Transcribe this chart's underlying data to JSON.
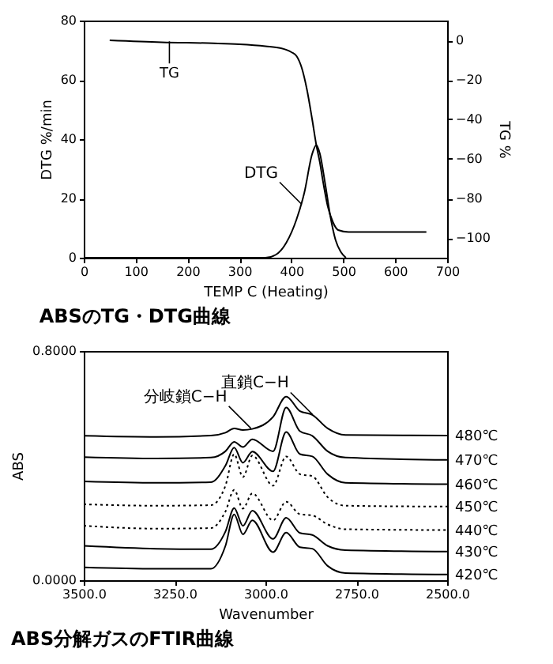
{
  "chart_data": [
    {
      "type": "line",
      "title": "ABSのTG・DTG曲線",
      "xlabel": "TEMP C  (Heating)",
      "ylabel": "DTG %/min",
      "y2label": "TG %",
      "xlim": [
        0,
        700
      ],
      "xticks": [
        0,
        100,
        200,
        300,
        400,
        500,
        600,
        700
      ],
      "ylim": [
        0,
        80
      ],
      "yticks": [
        0,
        20,
        40,
        60,
        80
      ],
      "y2lim": [
        -110,
        10
      ],
      "y2ticks": [
        0,
        -20,
        -40,
        -60,
        -80,
        -100
      ],
      "annotations": [
        {
          "text": "TG",
          "x": 165,
          "y": 73
        },
        {
          "text": "DTG",
          "x": 420,
          "y": 18
        }
      ],
      "series": [
        {
          "color": "#000000",
          "axis": "y",
          "x": [
            0,
            100,
            200,
            300,
            350,
            370,
            390,
            410,
            425,
            440,
            448,
            455,
            465,
            475,
            485,
            495,
            505
          ],
          "values": [
            0,
            0,
            0,
            0,
            0,
            1,
            5,
            13,
            22,
            35,
            38,
            35,
            25,
            14,
            6,
            2,
            0
          ]
        },
        {
          "color": "#000000",
          "axis": "y2",
          "x": [
            50,
            150,
            250,
            300,
            350,
            380,
            400,
            410,
            420,
            430,
            440,
            448,
            455,
            460,
            470,
            480,
            490,
            510,
            560,
            660
          ],
          "values": [
            0,
            -1,
            -1.5,
            -2,
            -3,
            -4,
            -6,
            -8,
            -14,
            -25,
            -40,
            -53,
            -62,
            -70,
            -84,
            -92,
            -96,
            -97,
            -97,
            -97
          ]
        }
      ]
    },
    {
      "type": "line",
      "title": "ABS分解ガスのFTIR曲線",
      "xlabel": "Wavenumber",
      "ylabel": "ABS",
      "xlim": [
        3500,
        2500
      ],
      "xticks": [
        {
          "value": 3500,
          "label": "3500.0"
        },
        {
          "value": 3250,
          "label": "3250.0"
        },
        {
          "value": 3000,
          "label": "3000.0"
        },
        {
          "value": 2750,
          "label": "2750.0"
        },
        {
          "value": 2500,
          "label": "2500.0"
        }
      ],
      "ylim": [
        0,
        0.8
      ],
      "yticks": [
        {
          "value": 0,
          "label": "0.0000"
        },
        {
          "value": 0.8,
          "label": "0.8000"
        }
      ],
      "annotations": [
        {
          "text": "分岐鎖C−H",
          "x": 3040,
          "y": 0.53
        },
        {
          "text": "直鎖C−H",
          "x": 2870,
          "y": 0.578
        }
      ],
      "x": [
        3500,
        3300,
        3150,
        3110,
        3086,
        3062,
        3036,
        2979,
        2943,
        2905,
        2871,
        2829,
        2780,
        2500
      ],
      "series": [
        {
          "name": "480℃",
          "color": "#000000",
          "values": [
            0.504,
            0.5,
            0.505,
            0.515,
            0.53,
            0.524,
            0.528,
            0.57,
            0.641,
            0.59,
            0.577,
            0.53,
            0.507,
            0.505
          ]
        },
        {
          "name": "470℃",
          "color": "#000000",
          "values": [
            0.43,
            0.425,
            0.428,
            0.45,
            0.483,
            0.465,
            0.492,
            0.45,
            0.603,
            0.52,
            0.504,
            0.45,
            0.428,
            0.42
          ]
        },
        {
          "name": "460℃",
          "color": "#000000",
          "values": [
            0.345,
            0.34,
            0.342,
            0.4,
            0.463,
            0.41,
            0.449,
            0.38,
            0.517,
            0.44,
            0.432,
            0.37,
            0.34,
            0.335
          ]
        },
        {
          "name": "450℃",
          "color": "#000000",
          "line_style": "dotted",
          "values": [
            0.265,
            0.26,
            0.262,
            0.33,
            0.44,
            0.36,
            0.435,
            0.33,
            0.432,
            0.37,
            0.363,
            0.29,
            0.26,
            0.257
          ]
        },
        {
          "name": "440℃",
          "color": "#000000",
          "line_style": "dotted",
          "values": [
            0.19,
            0.18,
            0.182,
            0.24,
            0.315,
            0.25,
            0.303,
            0.209,
            0.274,
            0.23,
            0.226,
            0.195,
            0.178,
            0.175
          ]
        },
        {
          "name": "430℃",
          "color": "#000000",
          "values": [
            0.12,
            0.11,
            0.108,
            0.17,
            0.252,
            0.19,
            0.243,
            0.144,
            0.218,
            0.165,
            0.158,
            0.12,
            0.105,
            0.1
          ]
        },
        {
          "name": "420℃",
          "color": "#000000",
          "values": [
            0.045,
            0.04,
            0.04,
            0.12,
            0.23,
            0.16,
            0.209,
            0.098,
            0.166,
            0.115,
            0.11,
            0.05,
            0.025,
            0.02
          ]
        }
      ]
    }
  ]
}
